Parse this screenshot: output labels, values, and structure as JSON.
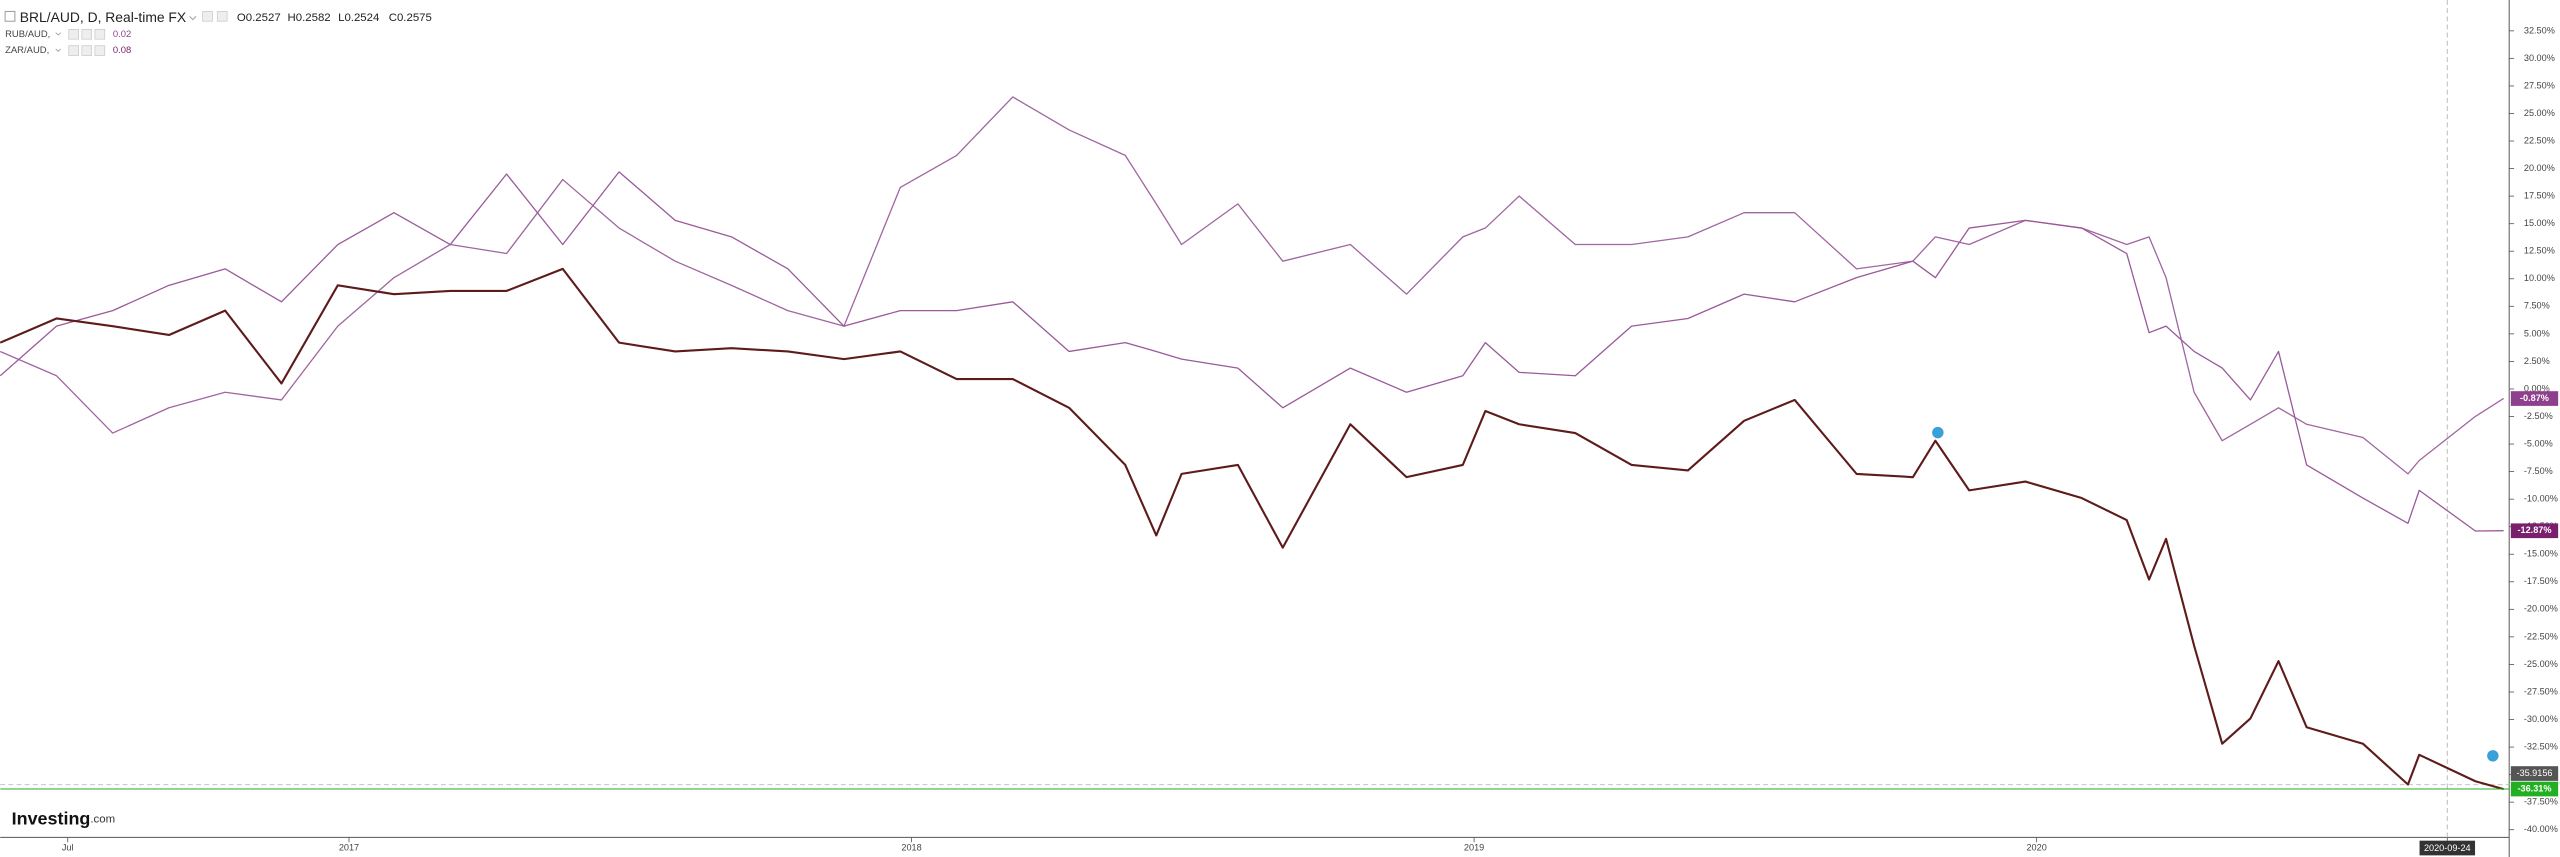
{
  "chart_data": {
    "type": "line",
    "ohlc": [
      {
        "label": "O",
        "value": 0.2527
      },
      {
        "label": "H",
        "value": 0.2582
      },
      {
        "label": "L",
        "value": 0.2524
      },
      {
        "label": "C",
        "value": 0.2575
      }
    ],
    "x": [
      2016.38,
      2016.48,
      2016.58,
      2016.68,
      2016.78,
      2016.88,
      2016.98,
      2017.08,
      2017.18,
      2017.28,
      2017.38,
      2017.48,
      2017.58,
      2017.68,
      2017.78,
      2017.88,
      2017.98,
      2018.08,
      2018.18,
      2018.28,
      2018.38,
      2018.435,
      2018.48,
      2018.58,
      2018.66,
      2018.78,
      2018.88,
      2018.98,
      2019.02,
      2019.08,
      2019.18,
      2019.28,
      2019.38,
      2019.48,
      2019.57,
      2019.68,
      2019.78,
      2019.82,
      2019.88,
      2019.98,
      2020.08,
      2020.16,
      2020.2,
      2020.23,
      2020.28,
      2020.33,
      2020.38,
      2020.43,
      2020.48,
      2020.58,
      2020.66,
      2020.68,
      2020.78,
      2020.83
    ],
    "series": [
      {
        "name": "RUB/AUD,",
        "legend_value": 0.02,
        "color": "#a066a0",
        "label_color": "#8e3f8e",
        "last_label": "-0.87%",
        "values": [
          3.4,
          1.2,
          -4.0,
          -1.7,
          -0.3,
          -1.0,
          5.7,
          10.1,
          13.1,
          12.3,
          19.0,
          14.6,
          11.6,
          9.4,
          7.1,
          5.7,
          18.3,
          21.2,
          26.5,
          23.5,
          21.2,
          16.8,
          13.1,
          16.8,
          11.6,
          13.1,
          8.6,
          13.8,
          14.6,
          17.5,
          13.1,
          13.1,
          13.8,
          16.0,
          16.0,
          10.9,
          11.6,
          13.8,
          13.1,
          15.3,
          14.6,
          13.1,
          13.8,
          10.1,
          -0.3,
          -4.7,
          -3.2,
          -1.7,
          -3.2,
          -4.4,
          -7.7,
          -6.5,
          -2.5,
          -0.87
        ]
      },
      {
        "name": "ZAR/AUD,",
        "legend_value": 0.08,
        "color": "#9a5a9a",
        "label_color": "#7a1f6b",
        "last_label": "-12.87%",
        "values": [
          1.2,
          5.7,
          7.1,
          9.4,
          10.9,
          7.9,
          13.1,
          16.0,
          13.1,
          19.5,
          13.1,
          19.7,
          15.3,
          13.8,
          10.9,
          5.7,
          7.1,
          7.1,
          7.9,
          3.4,
          4.2,
          3.4,
          2.7,
          1.9,
          -1.7,
          1.9,
          -0.3,
          1.2,
          4.2,
          1.5,
          1.2,
          5.7,
          6.4,
          8.6,
          7.9,
          10.1,
          11.6,
          10.1,
          14.6,
          15.3,
          14.6,
          12.3,
          5.1,
          5.7,
          3.4,
          1.9,
          -1.0,
          3.4,
          -6.9,
          -9.9,
          -12.2,
          -9.2,
          -12.9,
          -12.87
        ]
      },
      {
        "name": "BRL/AUD, D, Real-time FX",
        "color": "#5e1b1b",
        "label_color": "#22b022",
        "last_label": "-36.31%",
        "values": [
          4.2,
          6.4,
          5.7,
          4.9,
          7.1,
          0.5,
          9.4,
          8.6,
          8.9,
          8.9,
          10.9,
          4.2,
          3.4,
          3.7,
          3.4,
          2.7,
          3.4,
          0.9,
          0.9,
          -1.7,
          -6.9,
          -13.3,
          -7.7,
          -6.9,
          -14.4,
          -3.2,
          -8.0,
          -6.9,
          -2.0,
          -3.2,
          -4.0,
          -6.9,
          -7.4,
          -2.9,
          -1.0,
          -7.7,
          -8.0,
          -4.7,
          -9.2,
          -8.4,
          -9.9,
          -11.9,
          -17.3,
          -13.6,
          -23.3,
          -32.2,
          -29.9,
          -24.7,
          -30.7,
          -32.2,
          -35.9,
          -33.2,
          -35.6,
          -36.31
        ]
      }
    ],
    "crosshair_value": -35.9156,
    "xlim": [
      2016.38,
      2020.84
    ],
    "xticks": [
      {
        "value": 2016.5,
        "label": "Jul"
      },
      2017,
      2018,
      2019,
      2020,
      {
        "value": 2020.73,
        "label": "2020-09-24"
      }
    ],
    "ylim": [
      -40.7,
      35.3
    ],
    "yticks": [
      {
        "value": 32.5,
        "label": "32.50%"
      },
      {
        "value": 30,
        "label": "30.00%"
      },
      {
        "value": 27.5,
        "label": "27.50%"
      },
      {
        "value": 25,
        "label": "25.00%"
      },
      {
        "value": 22.5,
        "label": "22.50%"
      },
      {
        "value": 20,
        "label": "20.00%"
      },
      {
        "value": 17.5,
        "label": "17.50%"
      },
      {
        "value": 15,
        "label": "15.00%"
      },
      {
        "value": 12.5,
        "label": "12.50%"
      },
      {
        "value": 10,
        "label": "10.00%"
      },
      {
        "value": 7.5,
        "label": "7.50%"
      },
      {
        "value": 5,
        "label": "5.00%"
      },
      {
        "value": 2.5,
        "label": "2.50%"
      },
      {
        "value": 0,
        "label": "0.00%"
      },
      {
        "value": -2.5,
        "label": "-2.50%"
      },
      {
        "value": -5,
        "label": "-5.00%"
      },
      {
        "value": -7.5,
        "label": "-7.50%"
      },
      {
        "value": -10,
        "label": "-10.00%"
      },
      {
        "value": -12.5,
        "label": "-12.50%"
      },
      {
        "value": -15,
        "label": "-15.00%"
      },
      {
        "value": -17.5,
        "label": "-17.50%"
      },
      {
        "value": -20,
        "label": "-20.00%"
      },
      {
        "value": -22.5,
        "label": "-22.50%"
      },
      {
        "value": -25,
        "label": "-25.00%"
      },
      {
        "value": -27.5,
        "label": "-27.50%"
      },
      {
        "value": -30,
        "label": "-30.00%"
      },
      {
        "value": -32.5,
        "label": "-32.50%"
      },
      {
        "value": -35,
        "label": "-35.00%"
      },
      {
        "value": -37.5,
        "label": "-37.50%"
      },
      {
        "value": -40,
        "label": "-40.00%"
      }
    ],
    "logo": {
      "name": "Investing",
      "suffix": ".com"
    }
  }
}
